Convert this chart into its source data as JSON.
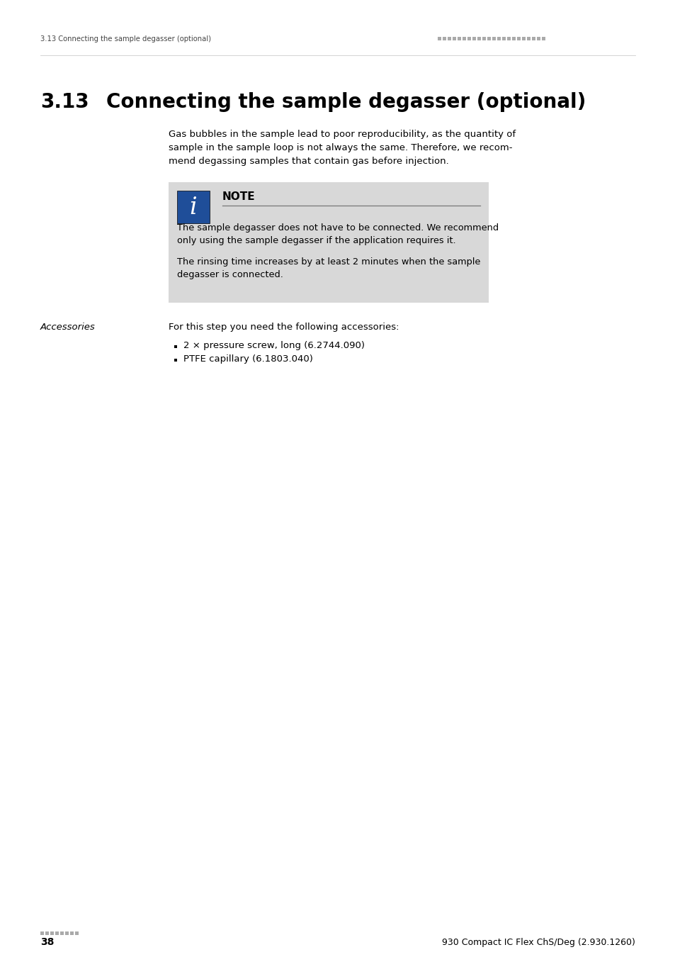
{
  "bg_color": "#ffffff",
  "header_text_left": "3.13 Connecting the sample degasser (optional)",
  "header_dots_color": "#aaaaaa",
  "chapter_number": "3.13",
  "chapter_title": "Connecting the sample degasser (optional)",
  "body_text_line1": "Gas bubbles in the sample lead to poor reproducibility, as the quantity of",
  "body_text_line2": "sample in the sample loop is not always the same. Therefore, we recom-",
  "body_text_line3": "mend degassing samples that contain gas before injection.",
  "note_bg_color": "#d8d8d8",
  "note_icon_bg": "#1f4e99",
  "note_label": "NOTE",
  "note_text1_line1": "The sample degasser does not have to be connected. We recommend",
  "note_text1_line2": "only using the sample degasser if the application requires it.",
  "note_text2_line1": "The rinsing time increases by at least 2 minutes when the sample",
  "note_text2_line2": "degasser is connected.",
  "accessories_label": "Accessories",
  "accessories_intro": "For this step you need the following accessories:",
  "bullet1": "2 × pressure screw, long (6.2744.090)",
  "bullet2": "PTFE capillary (6.1803.040)",
  "footer_page": "38",
  "footer_dots_color": "#aaaaaa",
  "footer_right": "930 Compact IC Flex ChS/Deg (2.930.1260)"
}
